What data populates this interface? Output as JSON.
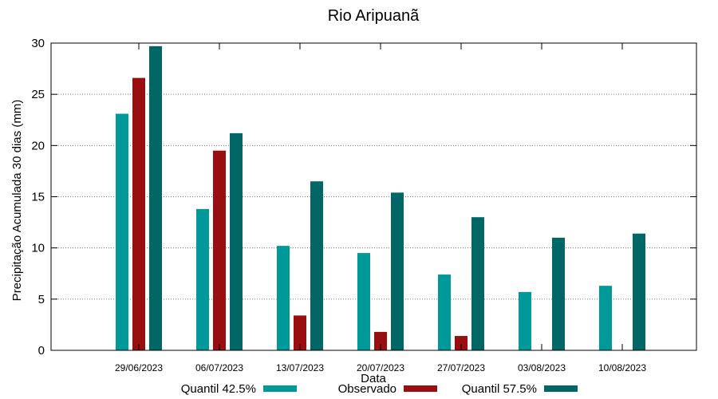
{
  "chart_data": {
    "type": "bar",
    "title": "Rio Aripuanã",
    "xlabel": "Data",
    "ylabel": "Precipitação Acumulada 30 dias (mm)",
    "ylim": [
      0,
      30
    ],
    "yticks": [
      0,
      5,
      10,
      15,
      20,
      25,
      30
    ],
    "grid": true,
    "legend_position": "bottom",
    "categories": [
      "29/06/2023",
      "06/07/2023",
      "13/07/2023",
      "20/07/2023",
      "27/07/2023",
      "03/08/2023",
      "10/08/2023"
    ],
    "series": [
      {
        "name": "Quantil 42.5%",
        "color": "#009999",
        "values": [
          23.1,
          13.8,
          10.2,
          9.5,
          7.4,
          5.7,
          6.3
        ]
      },
      {
        "name": "Observado",
        "color": "#990f0f",
        "values": [
          26.6,
          19.5,
          3.4,
          1.8,
          1.4,
          null,
          null
        ]
      },
      {
        "name": "Quantil 57.5%",
        "color": "#006666",
        "values": [
          29.7,
          21.2,
          16.5,
          15.4,
          13.0,
          11.0,
          11.4
        ]
      }
    ]
  }
}
